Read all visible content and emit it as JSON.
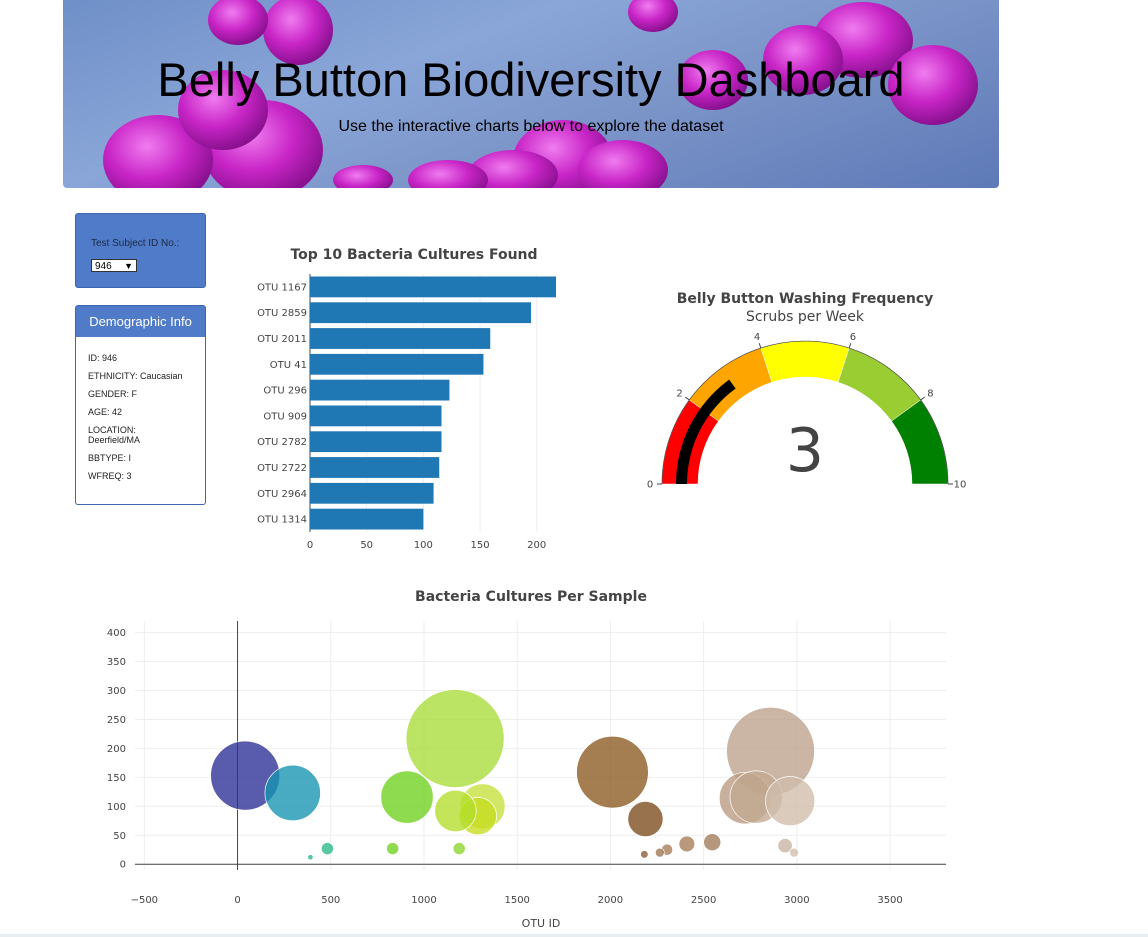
{
  "header": {
    "title": "Belly Button Biodiversity Dashboard",
    "subtitle": "Use the interactive charts below to explore the dataset"
  },
  "selector": {
    "label": "Test Subject ID No.:",
    "selected": "946"
  },
  "demographics": {
    "heading": "Demographic Info",
    "lines": [
      "ID: 946",
      "ETHNICITY: Caucasian",
      "GENDER: F",
      "AGE: 42",
      "LOCATION: Deerfield/MA",
      "BBTYPE: I",
      "WFREQ: 3"
    ]
  },
  "colors": {
    "bar": "#1f77b4",
    "panel": "#4f7bc8"
  },
  "chart_data": [
    {
      "type": "bar",
      "orientation": "horizontal",
      "title": "Top 10 Bacteria Cultures Found",
      "categories": [
        "OTU 1167",
        "OTU 2859",
        "OTU 2011",
        "OTU 41",
        "OTU 296",
        "OTU 909",
        "OTU 2782",
        "OTU 2722",
        "OTU 2964",
        "OTU 1314"
      ],
      "values": [
        217,
        195,
        159,
        153,
        123,
        116,
        116,
        114,
        109,
        100
      ],
      "xlim": [
        0,
        217
      ],
      "xticks": [
        0,
        50,
        100,
        150,
        200
      ]
    },
    {
      "type": "gauge",
      "title": "Belly Button Washing Frequency",
      "subtitle": "Scrubs per Week",
      "value": 3,
      "range": [
        0,
        10
      ],
      "ticks": [
        0,
        2,
        4,
        6,
        8,
        10
      ],
      "steps": [
        {
          "range": [
            0,
            2
          ],
          "color": "#ff0000"
        },
        {
          "range": [
            2,
            4
          ],
          "color": "#ffa500"
        },
        {
          "range": [
            4,
            6
          ],
          "color": "#ffff00"
        },
        {
          "range": [
            6,
            8
          ],
          "color": "#9acd32"
        },
        {
          "range": [
            8,
            10
          ],
          "color": "#008000"
        }
      ],
      "bar_color": "#000000"
    },
    {
      "type": "scatter",
      "mode": "bubble",
      "title": "Bacteria Cultures Per Sample",
      "xlabel": "OTU ID",
      "ylabel": "",
      "xlim": [
        -550,
        3800
      ],
      "ylim": [
        -10,
        420
      ],
      "xticks": [
        -500,
        0,
        500,
        1000,
        1500,
        2000,
        2500,
        3000,
        3500
      ],
      "yticks": [
        0,
        50,
        100,
        150,
        200,
        250,
        300,
        350,
        400
      ],
      "points": [
        {
          "x": 41,
          "y": 153,
          "color": "#2a2e95"
        },
        {
          "x": 296,
          "y": 123,
          "color": "#1593b0"
        },
        {
          "x": 482,
          "y": 27,
          "color": "#26b98a"
        },
        {
          "x": 391,
          "y": 12,
          "color": "#26b98a"
        },
        {
          "x": 909,
          "y": 116,
          "color": "#6fd11e"
        },
        {
          "x": 832,
          "y": 27,
          "color": "#6fd11e"
        },
        {
          "x": 1167,
          "y": 217,
          "color": "#a8dc3a"
        },
        {
          "x": 1189,
          "y": 27,
          "color": "#8ad42a"
        },
        {
          "x": 1314,
          "y": 100,
          "color": "#c7e03b"
        },
        {
          "x": 1289,
          "y": 83,
          "color": "#c7dc1e"
        },
        {
          "x": 1169,
          "y": 92,
          "color": "#b4de2b"
        },
        {
          "x": 2011,
          "y": 159,
          "color": "#8a5a20"
        },
        {
          "x": 2188,
          "y": 78,
          "color": "#7a4a1a"
        },
        {
          "x": 2182,
          "y": 17,
          "color": "#8a5a30"
        },
        {
          "x": 2304,
          "y": 25,
          "color": "#a77b55"
        },
        {
          "x": 2410,
          "y": 35,
          "color": "#a77b55"
        },
        {
          "x": 2265,
          "y": 20,
          "color": "#9e7550"
        },
        {
          "x": 2546,
          "y": 38,
          "color": "#a07a58"
        },
        {
          "x": 2859,
          "y": 195,
          "color": "#bca08a"
        },
        {
          "x": 2722,
          "y": 114,
          "color": "#b89a80"
        },
        {
          "x": 2782,
          "y": 116,
          "color": "#c2a890"
        },
        {
          "x": 2964,
          "y": 109,
          "color": "#d0bcab"
        },
        {
          "x": 2937,
          "y": 32,
          "color": "#c8b49f"
        },
        {
          "x": 2985,
          "y": 20,
          "color": "#d0bfae"
        }
      ]
    }
  ]
}
